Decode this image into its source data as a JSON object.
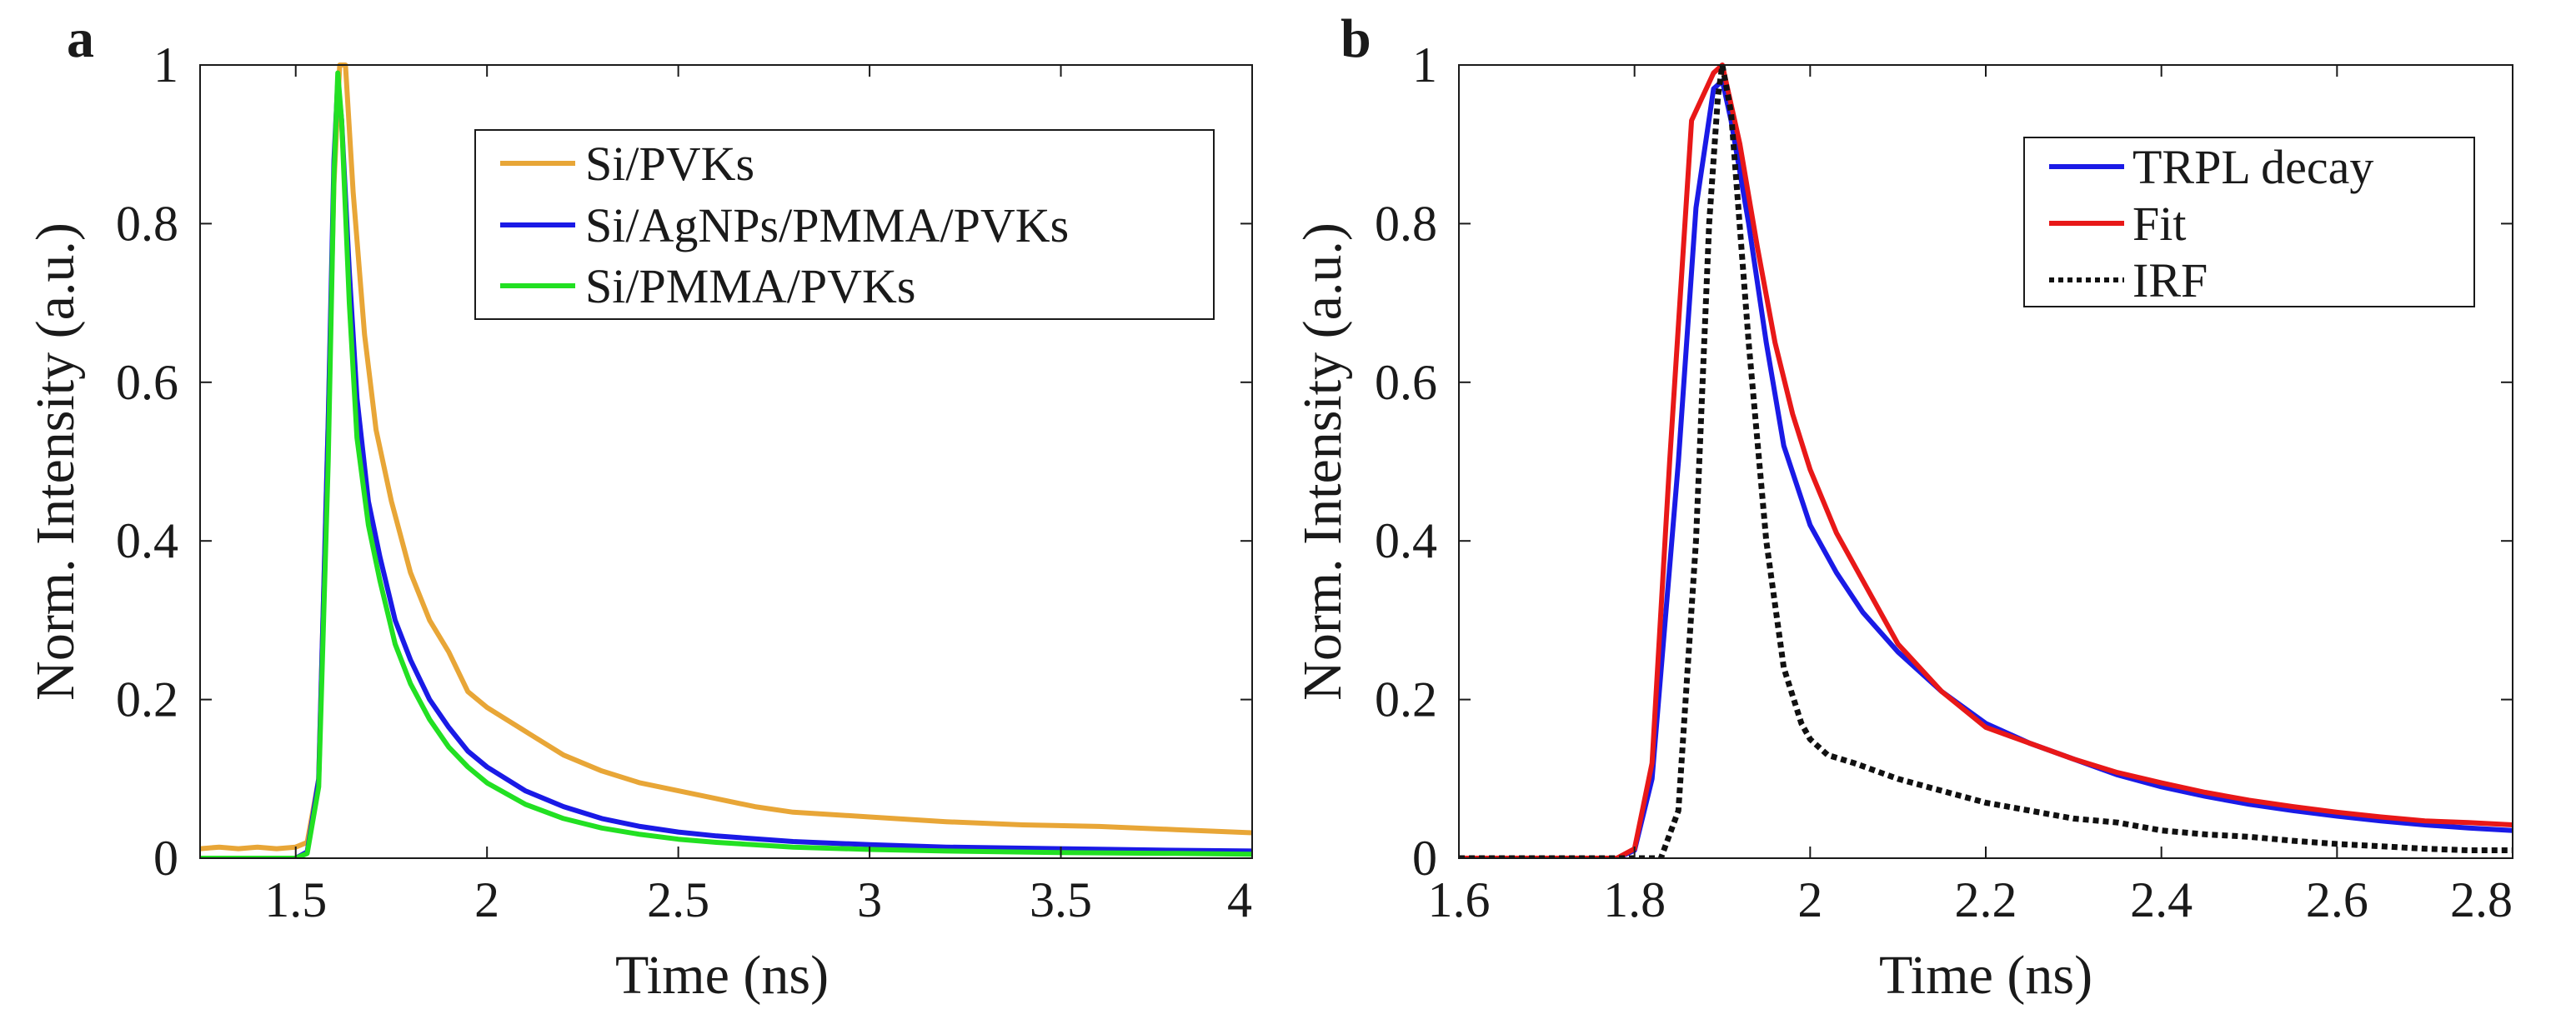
{
  "chart_data": [
    {
      "panel": "a",
      "type": "line",
      "title": "",
      "xlabel": "Time (ns)",
      "ylabel": "Norm. Intensity (a.u.)",
      "xlim": [
        1.25,
        4.0
      ],
      "ylim": [
        0,
        1
      ],
      "xticks": [
        1.5,
        2,
        2.5,
        3,
        3.5,
        4
      ],
      "xtick_labels": [
        "1.5",
        "2",
        "2.5",
        "3",
        "3.5",
        "4"
      ],
      "yticks": [
        0,
        0.2,
        0.4,
        0.6,
        0.8,
        1
      ],
      "ytick_labels": [
        "0",
        "0.2",
        "0.4",
        "0.6",
        "0.8",
        "1"
      ],
      "grid": false,
      "legend": {
        "position": "top-right"
      },
      "series": [
        {
          "name": "Si/PVKs",
          "color": "#E8A637",
          "dash": "solid",
          "points": [
            [
              1.25,
              0.012
            ],
            [
              1.3,
              0.014
            ],
            [
              1.35,
              0.012
            ],
            [
              1.4,
              0.014
            ],
            [
              1.45,
              0.012
            ],
            [
              1.5,
              0.014
            ],
            [
              1.53,
              0.02
            ],
            [
              1.56,
              0.1
            ],
            [
              1.585,
              0.55
            ],
            [
              1.6,
              0.85
            ],
            [
              1.615,
              1.0
            ],
            [
              1.63,
              1.0
            ],
            [
              1.65,
              0.84
            ],
            [
              1.68,
              0.66
            ],
            [
              1.71,
              0.54
            ],
            [
              1.75,
              0.45
            ],
            [
              1.8,
              0.36
            ],
            [
              1.85,
              0.3
            ],
            [
              1.9,
              0.26
            ],
            [
              1.95,
              0.21
            ],
            [
              2.0,
              0.19
            ],
            [
              2.1,
              0.16
            ],
            [
              2.2,
              0.13
            ],
            [
              2.3,
              0.11
            ],
            [
              2.4,
              0.095
            ],
            [
              2.5,
              0.085
            ],
            [
              2.6,
              0.075
            ],
            [
              2.7,
              0.065
            ],
            [
              2.8,
              0.058
            ],
            [
              2.9,
              0.055
            ],
            [
              3.0,
              0.052
            ],
            [
              3.2,
              0.046
            ],
            [
              3.4,
              0.042
            ],
            [
              3.6,
              0.04
            ],
            [
              3.8,
              0.036
            ],
            [
              4.0,
              0.032
            ]
          ]
        },
        {
          "name": "Si/AgNPs/PMMA/PVKs",
          "color": "#1A1AE6",
          "dash": "solid",
          "points": [
            [
              1.25,
              0.0
            ],
            [
              1.5,
              0.0
            ],
            [
              1.53,
              0.008
            ],
            [
              1.56,
              0.1
            ],
            [
              1.585,
              0.55
            ],
            [
              1.6,
              0.88
            ],
            [
              1.61,
              0.98
            ],
            [
              1.62,
              0.93
            ],
            [
              1.64,
              0.74
            ],
            [
              1.66,
              0.58
            ],
            [
              1.69,
              0.45
            ],
            [
              1.72,
              0.38
            ],
            [
              1.76,
              0.3
            ],
            [
              1.8,
              0.25
            ],
            [
              1.85,
              0.2
            ],
            [
              1.9,
              0.165
            ],
            [
              1.95,
              0.135
            ],
            [
              2.0,
              0.115
            ],
            [
              2.1,
              0.085
            ],
            [
              2.2,
              0.065
            ],
            [
              2.3,
              0.05
            ],
            [
              2.4,
              0.04
            ],
            [
              2.5,
              0.033
            ],
            [
              2.6,
              0.028
            ],
            [
              2.8,
              0.021
            ],
            [
              3.0,
              0.017
            ],
            [
              3.2,
              0.014
            ],
            [
              3.5,
              0.012
            ],
            [
              3.8,
              0.01
            ],
            [
              4.0,
              0.009
            ]
          ]
        },
        {
          "name": "Si/PMMA/PVKs",
          "color": "#22E022",
          "dash": "solid",
          "points": [
            [
              1.25,
              0.0
            ],
            [
              1.5,
              0.0
            ],
            [
              1.53,
              0.006
            ],
            [
              1.56,
              0.09
            ],
            [
              1.585,
              0.5
            ],
            [
              1.6,
              0.86
            ],
            [
              1.61,
              0.99
            ],
            [
              1.62,
              0.93
            ],
            [
              1.64,
              0.7
            ],
            [
              1.66,
              0.53
            ],
            [
              1.69,
              0.42
            ],
            [
              1.72,
              0.35
            ],
            [
              1.76,
              0.27
            ],
            [
              1.8,
              0.22
            ],
            [
              1.85,
              0.175
            ],
            [
              1.9,
              0.14
            ],
            [
              1.95,
              0.115
            ],
            [
              2.0,
              0.095
            ],
            [
              2.1,
              0.068
            ],
            [
              2.2,
              0.05
            ],
            [
              2.3,
              0.038
            ],
            [
              2.4,
              0.03
            ],
            [
              2.5,
              0.024
            ],
            [
              2.6,
              0.02
            ],
            [
              2.8,
              0.014
            ],
            [
              3.0,
              0.011
            ],
            [
              3.2,
              0.009
            ],
            [
              3.5,
              0.007
            ],
            [
              3.8,
              0.006
            ],
            [
              4.0,
              0.005
            ]
          ]
        }
      ]
    },
    {
      "panel": "b",
      "type": "line",
      "title": "",
      "xlabel": "Time (ns)",
      "ylabel": "Norm. Intensity (a.u.)",
      "xlim": [
        1.6,
        2.8
      ],
      "ylim": [
        0,
        1
      ],
      "xticks": [
        1.6,
        1.8,
        2,
        2.2,
        2.4,
        2.6,
        2.8
      ],
      "xtick_labels": [
        "1.6",
        "1.8",
        "2",
        "2.2",
        "2.4",
        "2.6",
        "2.8"
      ],
      "yticks": [
        0,
        0.2,
        0.4,
        0.6,
        0.8,
        1
      ],
      "ytick_labels": [
        "0",
        "0.2",
        "0.4",
        "0.6",
        "0.8",
        "1"
      ],
      "grid": false,
      "legend": {
        "position": "top-right"
      },
      "series": [
        {
          "name": "TRPL decay",
          "color": "#1A1AE6",
          "dash": "solid",
          "points": [
            [
              1.6,
              0.0
            ],
            [
              1.78,
              0.0
            ],
            [
              1.8,
              0.01
            ],
            [
              1.82,
              0.1
            ],
            [
              1.85,
              0.5
            ],
            [
              1.87,
              0.82
            ],
            [
              1.89,
              0.97
            ],
            [
              1.9,
              0.98
            ],
            [
              1.91,
              0.93
            ],
            [
              1.93,
              0.8
            ],
            [
              1.95,
              0.65
            ],
            [
              1.97,
              0.52
            ],
            [
              2.0,
              0.42
            ],
            [
              2.03,
              0.36
            ],
            [
              2.06,
              0.31
            ],
            [
              2.1,
              0.26
            ],
            [
              2.15,
              0.21
            ],
            [
              2.2,
              0.17
            ],
            [
              2.25,
              0.145
            ],
            [
              2.3,
              0.125
            ],
            [
              2.35,
              0.105
            ],
            [
              2.4,
              0.09
            ],
            [
              2.45,
              0.078
            ],
            [
              2.5,
              0.068
            ],
            [
              2.55,
              0.06
            ],
            [
              2.6,
              0.053
            ],
            [
              2.65,
              0.047
            ],
            [
              2.7,
              0.042
            ],
            [
              2.75,
              0.038
            ],
            [
              2.8,
              0.035
            ]
          ]
        },
        {
          "name": "Fit",
          "color": "#E81818",
          "dash": "solid",
          "points": [
            [
              1.6,
              0.0
            ],
            [
              1.78,
              0.0
            ],
            [
              1.8,
              0.012
            ],
            [
              1.82,
              0.12
            ],
            [
              1.84,
              0.5
            ],
            [
              1.865,
              0.93
            ],
            [
              1.89,
              0.99
            ],
            [
              1.9,
              1.0
            ],
            [
              1.92,
              0.9
            ],
            [
              1.94,
              0.77
            ],
            [
              1.96,
              0.65
            ],
            [
              1.98,
              0.56
            ],
            [
              2.0,
              0.49
            ],
            [
              2.03,
              0.41
            ],
            [
              2.06,
              0.35
            ],
            [
              2.1,
              0.27
            ],
            [
              2.15,
              0.21
            ],
            [
              2.2,
              0.165
            ],
            [
              2.25,
              0.145
            ],
            [
              2.3,
              0.125
            ],
            [
              2.35,
              0.108
            ],
            [
              2.4,
              0.095
            ],
            [
              2.45,
              0.083
            ],
            [
              2.5,
              0.073
            ],
            [
              2.55,
              0.065
            ],
            [
              2.6,
              0.058
            ],
            [
              2.65,
              0.052
            ],
            [
              2.7,
              0.047
            ],
            [
              2.75,
              0.045
            ],
            [
              2.8,
              0.042
            ]
          ]
        },
        {
          "name": "IRF",
          "color": "#111111",
          "dash": "dotted",
          "points": [
            [
              1.6,
              0.0
            ],
            [
              1.83,
              0.0
            ],
            [
              1.85,
              0.06
            ],
            [
              1.87,
              0.4
            ],
            [
              1.885,
              0.8
            ],
            [
              1.895,
              0.96
            ],
            [
              1.9,
              1.0
            ],
            [
              1.91,
              0.94
            ],
            [
              1.93,
              0.65
            ],
            [
              1.95,
              0.4
            ],
            [
              1.97,
              0.24
            ],
            [
              1.99,
              0.17
            ],
            [
              2.0,
              0.15
            ],
            [
              2.02,
              0.13
            ],
            [
              2.05,
              0.12
            ],
            [
              2.1,
              0.1
            ],
            [
              2.15,
              0.085
            ],
            [
              2.2,
              0.07
            ],
            [
              2.25,
              0.06
            ],
            [
              2.3,
              0.05
            ],
            [
              2.35,
              0.045
            ],
            [
              2.4,
              0.035
            ],
            [
              2.45,
              0.03
            ],
            [
              2.5,
              0.027
            ],
            [
              2.55,
              0.022
            ],
            [
              2.6,
              0.018
            ],
            [
              2.65,
              0.015
            ],
            [
              2.7,
              0.012
            ],
            [
              2.75,
              0.01
            ],
            [
              2.8,
              0.01
            ]
          ]
        }
      ]
    }
  ]
}
